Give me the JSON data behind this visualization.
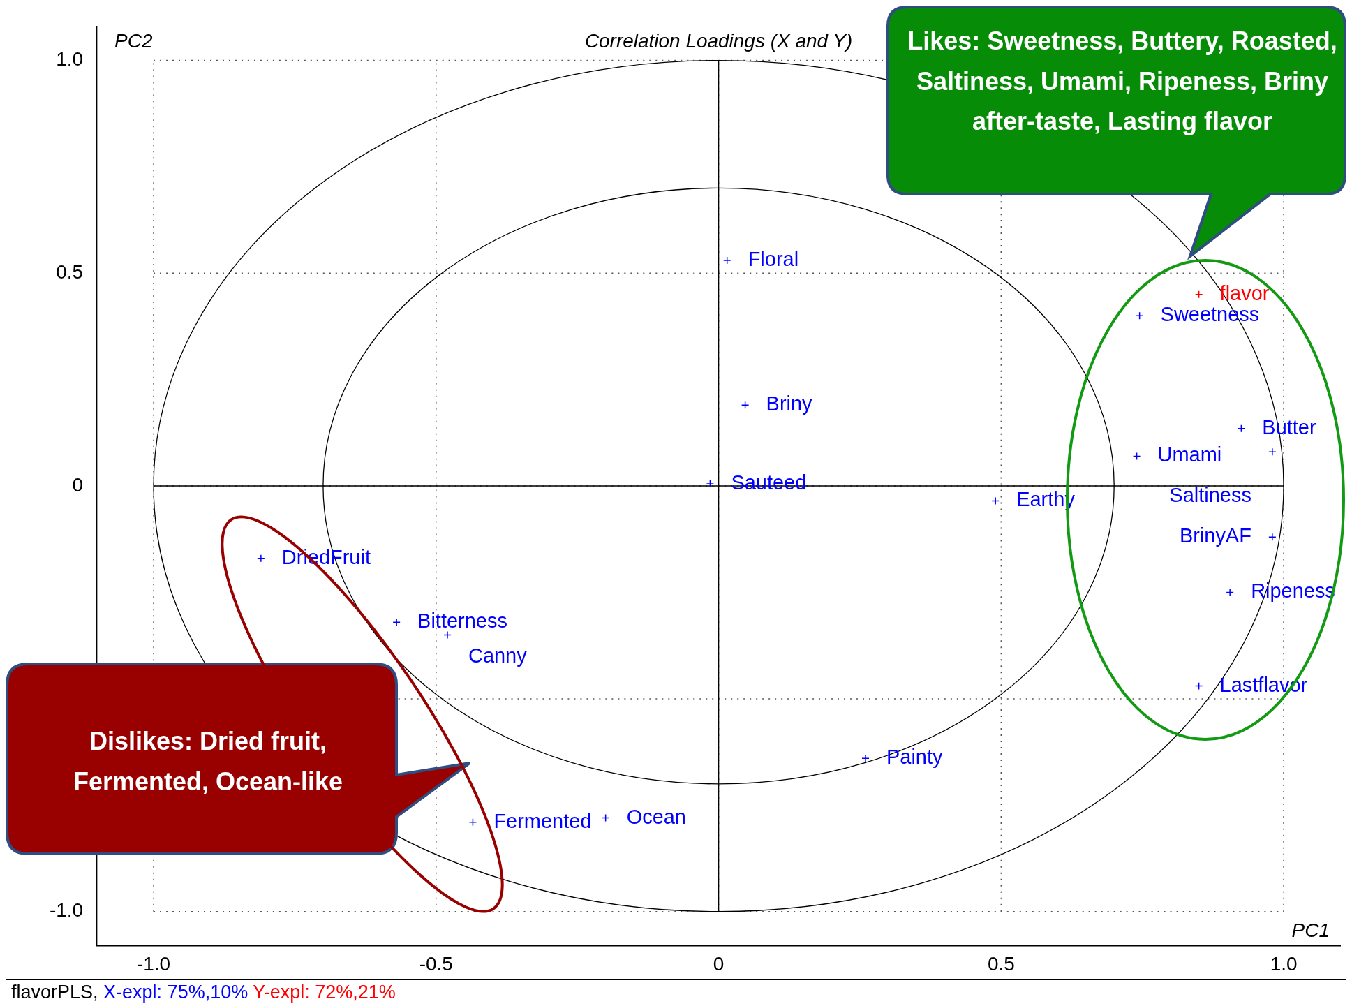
{
  "chart_data": {
    "type": "scatter",
    "title": "Correlation Loadings (X and Y)",
    "xlabel": "PC1",
    "ylabel": "PC2",
    "xlim": [
      -1.1,
      1.1
    ],
    "ylim": [
      -1.08,
      1.08
    ],
    "xticks": [
      {
        "value": -1,
        "label": "-1.0"
      },
      {
        "value": -0.5,
        "label": "-0.5"
      },
      0,
      {
        "value": 0.5,
        "label": "0.5"
      },
      {
        "value": 1,
        "label": "1.0"
      }
    ],
    "yticks": [
      {
        "value": -1,
        "label": "-1.0"
      },
      {
        "value": -0.5,
        "label": null
      },
      0,
      {
        "value": 0.5,
        "label": "0.5"
      },
      {
        "value": 1,
        "label": "1.0"
      }
    ],
    "grid": true,
    "line_style": "dotted",
    "marker": "cross",
    "legend": false,
    "series": [
      {
        "color": "#0000ff",
        "x": [
          0.015,
          0.047,
          -0.015,
          0.49,
          -0.81,
          -0.57,
          -0.48,
          -0.435,
          -0.2,
          0.26,
          0.745,
          0.925,
          0.74,
          0.98,
          0.98,
          0.905,
          0.85
        ],
        "values": [
          0.53,
          0.19,
          0.005,
          -0.035,
          -0.17,
          -0.32,
          -0.35,
          -0.79,
          -0.78,
          -0.64,
          0.4,
          0.135,
          0.07,
          0.08,
          -0.12,
          -0.25,
          -0.47
        ],
        "value_labels": [
          "Floral",
          "Briny",
          "Sauteed",
          "Earthy",
          "DriedFruit",
          "Bitterness",
          "Canny",
          "Fermented",
          "Ocean",
          "Painty",
          "Sweetness",
          "Butter",
          "Umami",
          "Saltiness",
          "BrinyAF",
          "Ripeness",
          "Lastflavor"
        ]
      },
      {
        "color": "#ff0000",
        "x": [
          0.85
        ],
        "values": [
          0.45
        ],
        "value_labels": [
          "flavor"
        ]
      }
    ],
    "annotations": [
      "Likes: Sweetness, Buttery, Roasted, Saltiness, Umami, Ripeness, Briny after-taste, Lasting flavor",
      "Dislikes: Dried fruit, Fermented, Ocean-like",
      "flavorPLS,",
      "X-expl: 75%,10%",
      "Y-expl: 72%,21%"
    ]
  }
}
